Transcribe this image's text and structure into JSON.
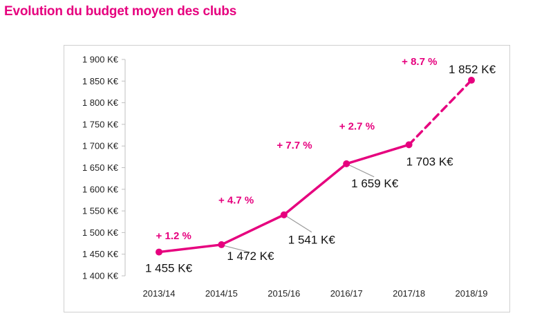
{
  "title": "Evolution du budget moyen des clubs",
  "colors": {
    "accent": "#e6007e",
    "leader": "#9a9a9a",
    "grid": "#dddddd"
  },
  "chart_data": {
    "type": "line",
    "title": "Evolution du budget moyen des clubs",
    "categories": [
      "2013/14",
      "2014/15",
      "2015/16",
      "2016/17",
      "2017/18",
      "2018/19"
    ],
    "values": [
      1455,
      1472,
      1541,
      1659,
      1703,
      1852
    ],
    "value_labels": [
      "1 455 K€",
      "1 472 K€",
      "1 541 K€",
      "1 659 K€",
      "1 703 K€",
      "1 852 K€"
    ],
    "growth_labels": [
      "+ 1.2 %",
      "+ 4.7 %",
      "+ 7.7 %",
      "+ 2.7 %",
      "+ 8.7 %"
    ],
    "projected_from_index": 4,
    "ylim": [
      1400,
      1900
    ],
    "ytick_values": [
      1400,
      1450,
      1500,
      1550,
      1600,
      1650,
      1700,
      1750,
      1800,
      1850,
      1900
    ],
    "ytick_labels": [
      "1 400 K€",
      "1 450 K€",
      "1 500 K€",
      "1 550 K€",
      "1 600 K€",
      "1 650 K€",
      "1 700 K€",
      "1 750 K€",
      "1 800 K€",
      "1 850 K€",
      "1 900 K€"
    ],
    "xlabel": "",
    "ylabel": "",
    "grid": false,
    "legend": "none"
  }
}
